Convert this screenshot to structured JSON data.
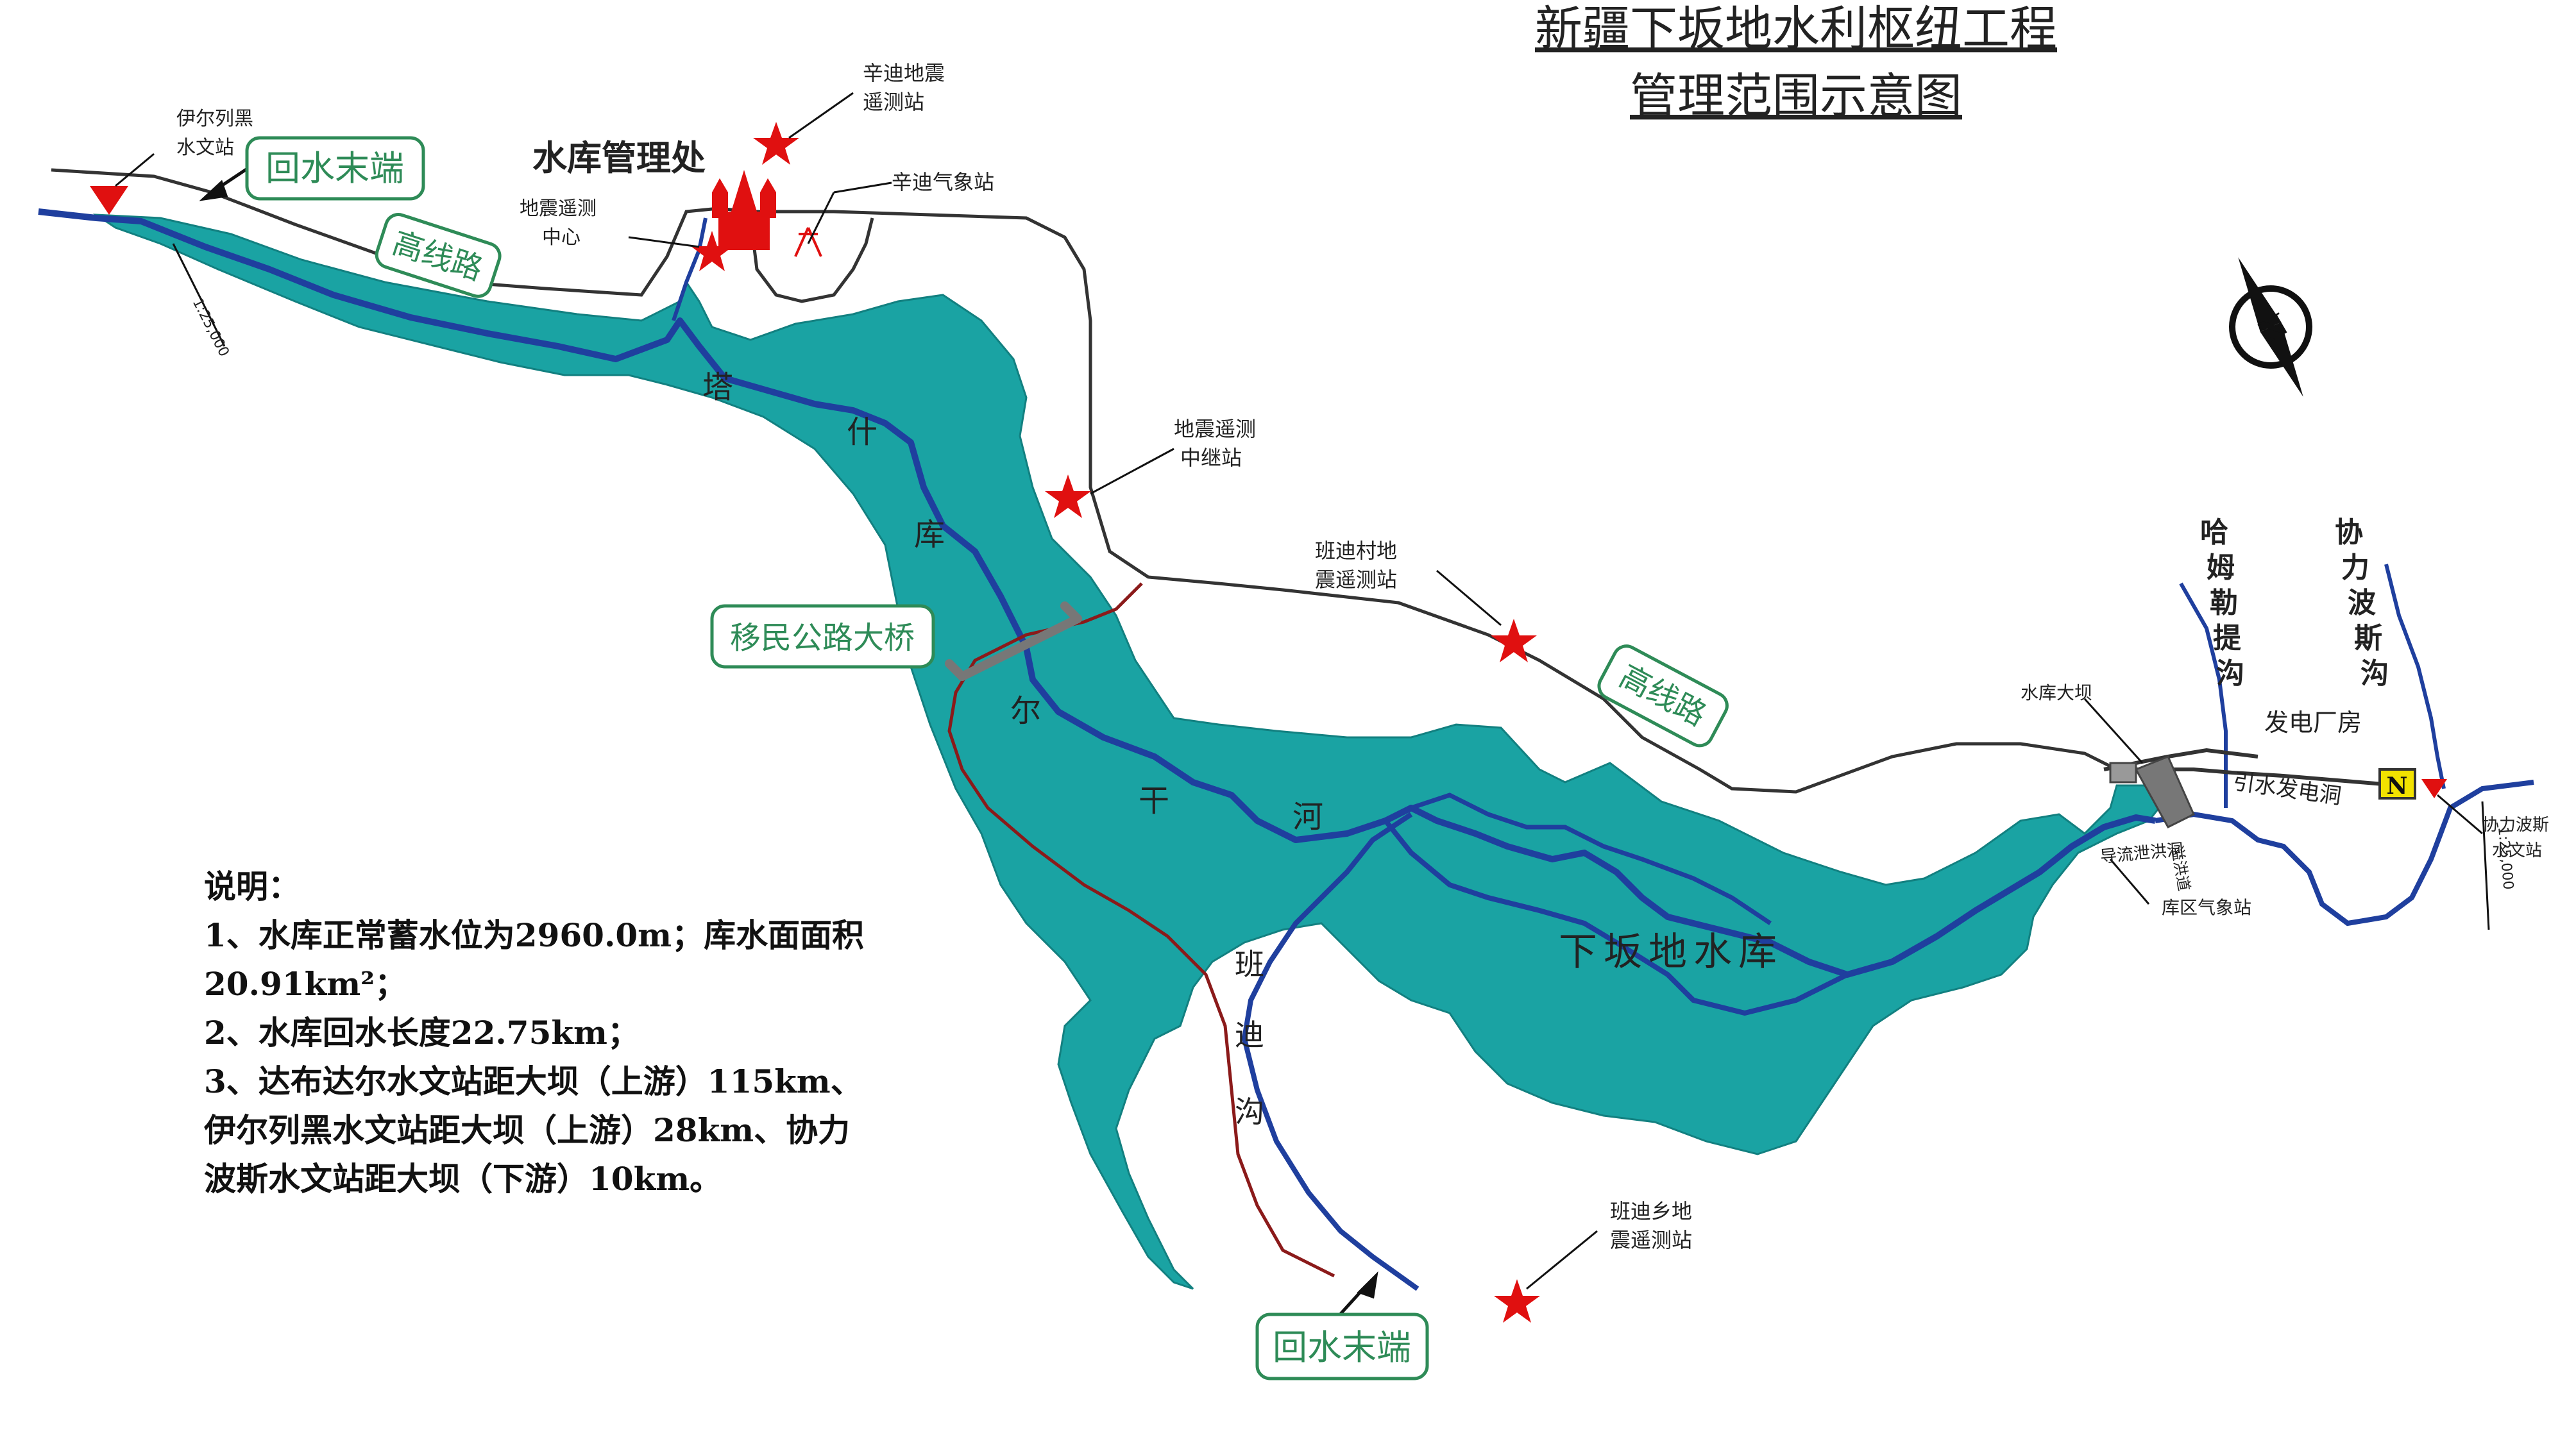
{
  "title": {
    "line1": "新疆下坂地水利枢纽工程",
    "line2": "管理范围示意图"
  },
  "labels": {
    "station_yierliehei": [
      "伊尔列黑",
      "水文站"
    ],
    "backwater_end": "回水末端",
    "highway": "高线路",
    "reservoir_office": "水库管理处",
    "seismic_center": [
      "地震遥测",
      "中心"
    ],
    "xindi_seismic": [
      "辛迪地震",
      "遥测站"
    ],
    "xindi_weather": "辛迪气象站",
    "seismic_relay": [
      "地震遥测",
      "中继站"
    ],
    "bandi_village": [
      "班迪村地",
      "震遥测站"
    ],
    "bridge": "移民公路大桥",
    "river_chars": [
      "塔",
      "什",
      "库",
      "尔",
      "干",
      "河"
    ],
    "bandigou_chars": [
      "班",
      "迪",
      "沟"
    ],
    "reservoir_name": "下坂地水库",
    "hamulet_chars": [
      "哈",
      "姆",
      "勒",
      "提",
      "沟"
    ],
    "xielibosi_chars": [
      "协",
      "力",
      "波",
      "斯",
      "沟"
    ],
    "dam": "水库大坝",
    "power_house": "发电厂房",
    "diversion_tunnel": "引水发电洞",
    "xielibosi_station": [
      "协力波斯",
      "水文站"
    ],
    "reservoir_weather": "库区气象站",
    "flood_tunnel": "导流泄洪洞",
    "spillway": "溢洪道",
    "bandi_township": [
      "班迪乡地",
      "震遥测站"
    ],
    "scale_label": "1:25,000",
    "north": "N"
  },
  "notes": {
    "heading": "说明：",
    "item1a": "1、水库正常蓄水位为2960.0m；库水面面积",
    "item1b": "20.91km²；",
    "item2": "2、水库回水长度22.75km；",
    "item3a": "3、达布达尔水文站距大坝（上游）115km、",
    "item3b": "伊尔列黑水文站距大坝（上游）28km、协力",
    "item3c": "波斯水文站距大坝（下游）10km。"
  },
  "colors": {
    "reservoir": "#1aa3a3",
    "river": "#1f3f9e",
    "road": "#333333",
    "road_alt": "#8b1a1a",
    "marker": "#e01010",
    "label_box": "#2e8b57"
  }
}
